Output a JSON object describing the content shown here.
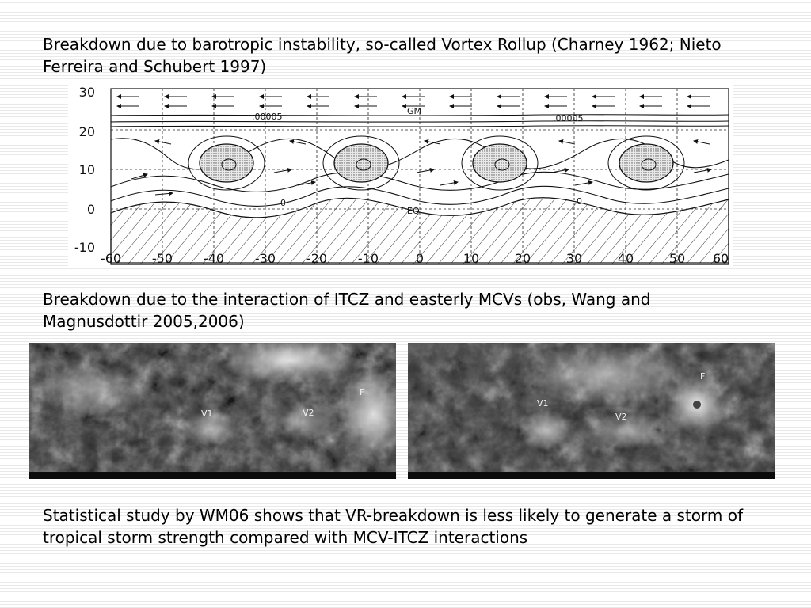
{
  "text": {
    "para1": "Breakdown due to barotropic instability, so-called Vortex Rollup (Charney 1962; Nieto Ferreira and Schubert 1997)",
    "para2": "Breakdown due to the interaction of ITCZ and easterly MCVs (obs, Wang and Magnusdottir 2005,2006)",
    "para3": "Statistical study by WM06 shows that VR-breakdown is less likely to generate a storm of tropical storm strength compared with MCV-ITCZ interactions"
  },
  "figure1": {
    "y_ticks": [
      "30",
      "20",
      "10",
      "0",
      "-10"
    ],
    "x_ticks": [
      "-60",
      "-50",
      "-40",
      "-30",
      "-20",
      "-10",
      "0",
      "10",
      "20",
      "30",
      "40",
      "50",
      "60"
    ],
    "contour_labels": [
      ".00005",
      "GM",
      ".00005",
      "0",
      "EQ",
      "0"
    ]
  },
  "satellite1": {
    "labels": [
      "V1",
      "V2",
      "F"
    ]
  },
  "satellite2": {
    "labels": [
      "V1",
      "V2",
      "F"
    ]
  }
}
